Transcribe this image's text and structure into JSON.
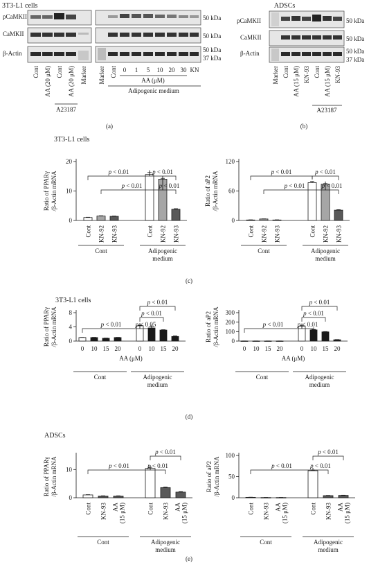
{
  "panel_a": {
    "cell_title": "3T3-L1 cells",
    "rows": [
      "pCaMKII",
      "CaMKII",
      "β-Actin"
    ],
    "left_lanes": [
      "Cont",
      "AA (20 μM)",
      "Cont",
      "AA (20 μM)",
      "Marker"
    ],
    "left_group": "A23187",
    "right_lanes": [
      "Marker",
      "Cont",
      "0",
      "1",
      "5",
      "10",
      "20",
      "30",
      "KN"
    ],
    "aa_label": "AA (μM)",
    "medium_label": "Adipogenic medium",
    "kda": [
      "50 kDa",
      "50 kDa",
      "50 kDa",
      "37 kDa"
    ],
    "caption": "(a)"
  },
  "panel_b": {
    "cell_title": "ADSCs",
    "rows": [
      "pCaMKII",
      "CaMKII",
      "β-Actin"
    ],
    "lanes": [
      "Marker",
      "Cont",
      "AA (15 μM)",
      "KN-93",
      "Cont",
      "AA (15 μM)",
      "KN-93"
    ],
    "group": "A23187",
    "kda": [
      "50 kDa",
      "50 kDa",
      "50 kDa",
      "37 kDa"
    ],
    "caption": "(b)"
  },
  "panel_c": {
    "cell_title": "3T3-L1 cells",
    "caption": "(c)"
  },
  "panel_d": {
    "cell_title": "3T3-L1 cells",
    "caption": "(d)"
  },
  "panel_e": {
    "cell_title": "ADSCs",
    "caption": "(e)"
  },
  "colors": {
    "open": "#ffffff",
    "gray": "#a6a6a6",
    "dark": "#595959",
    "black": "#1a1a1a"
  },
  "chart_data": [
    {
      "id": "c1",
      "type": "bar",
      "ylabel": [
        "Ratio of PPARγ",
        "/β-Actin mRNA"
      ],
      "ylim": [
        0,
        20
      ],
      "yticks": [
        0,
        10,
        20
      ],
      "categories": [
        "Cont",
        "KN-92",
        "KN-93",
        "Cont",
        "KN-92",
        "KN-93"
      ],
      "values": [
        1.0,
        1.5,
        1.4,
        15.6,
        14.0,
        3.8
      ],
      "errors": [
        0.1,
        0.1,
        0.1,
        0.7,
        0.3,
        0.2
      ],
      "fills": [
        "open",
        "gray",
        "dark",
        "open",
        "gray",
        "dark"
      ],
      "groups": [
        {
          "label": [
            "Cont"
          ],
          "from": 0,
          "to": 2
        },
        {
          "label": [
            "Adipogenic",
            "medium"
          ],
          "from": 3,
          "to": 5
        }
      ],
      "brackets": [
        {
          "a": 0,
          "b": 3,
          "level": 1,
          "text": "p < 0.01"
        },
        {
          "a": 1,
          "b": 4,
          "level": 0,
          "text": "p < 0.01"
        },
        {
          "a": 3,
          "b": 5,
          "level": 1,
          "text": "p < 0.01"
        },
        {
          "a": 4,
          "b": 5,
          "level": 0,
          "text": "p < 0.01"
        }
      ]
    },
    {
      "id": "c2",
      "type": "bar",
      "ylabel": [
        "Ratio of aP2",
        "/β-Actin mRNA"
      ],
      "ylim": [
        0,
        120
      ],
      "yticks": [
        0,
        60,
        120
      ],
      "categories": [
        "Cont",
        "KN-92",
        "KN-93",
        "Cont",
        "KN-92",
        "KN-93"
      ],
      "values": [
        1.0,
        3.0,
        1.0,
        77,
        74,
        21
      ],
      "errors": [
        0.3,
        0.3,
        0.3,
        2.5,
        1.0,
        1.0
      ],
      "fills": [
        "open",
        "gray",
        "dark",
        "open",
        "gray",
        "dark"
      ],
      "groups": [
        {
          "label": [
            "Cont"
          ],
          "from": 0,
          "to": 2
        },
        {
          "label": [
            "Adipogenic",
            "medium"
          ],
          "from": 3,
          "to": 5
        }
      ],
      "brackets": [
        {
          "a": 0,
          "b": 3,
          "level": 1,
          "text": "p < 0.01"
        },
        {
          "a": 1,
          "b": 4,
          "level": 0,
          "text": "p < 0.01"
        },
        {
          "a": 3,
          "b": 5,
          "level": 1,
          "text": "p < 0.01"
        },
        {
          "a": 4,
          "b": 5,
          "level": 0,
          "text": "p < 0.01"
        }
      ]
    },
    {
      "id": "d1",
      "type": "bar",
      "ylabel": [
        "Ratio of PPARγ",
        "/β-Actin mRNA"
      ],
      "ylim": [
        0,
        8
      ],
      "yticks": [
        0,
        4,
        8
      ],
      "categories": [
        "0",
        "10",
        "15",
        "20",
        "0",
        "10",
        "15",
        "20"
      ],
      "xlabel": "AA (μM)",
      "values": [
        1.0,
        1.0,
        0.8,
        1.0,
        4.3,
        3.7,
        3.1,
        1.3
      ],
      "errors": [
        0.05,
        0.05,
        0.05,
        0.05,
        0.15,
        0.35,
        0.1,
        0.15
      ],
      "fills": [
        "open",
        "black",
        "black",
        "black",
        "open",
        "black",
        "black",
        "black"
      ],
      "groups": [
        {
          "label": [
            "Cont"
          ],
          "from": 0,
          "to": 3
        },
        {
          "label": [
            "Adipogenic",
            "medium"
          ],
          "from": 4,
          "to": 7
        }
      ],
      "brackets": [
        {
          "a": 0,
          "b": 4,
          "level": 0,
          "text": "p < 0.01"
        },
        {
          "a": 4,
          "b": 5,
          "level": 0,
          "text": "p < 0.05"
        },
        {
          "a": 4,
          "b": 6,
          "level": 1,
          "text": "p < 0.01"
        },
        {
          "a": 4,
          "b": 7,
          "level": 2,
          "text": "p < 0.01"
        }
      ]
    },
    {
      "id": "d2",
      "type": "bar",
      "ylabel": [
        "Ratio of aP2",
        "/β-Actin mRNA"
      ],
      "ylim": [
        0,
        300
      ],
      "yticks": [
        0,
        100,
        200,
        300
      ],
      "categories": [
        "0",
        "10",
        "15",
        "20",
        "0",
        "10",
        "15",
        "20"
      ],
      "xlabel": "AA (μM)",
      "values": [
        1.0,
        1.0,
        1.0,
        1.0,
        157,
        118,
        97,
        14
      ],
      "errors": [
        0.5,
        0.5,
        0.5,
        0.5,
        6,
        5,
        3,
        2
      ],
      "fills": [
        "open",
        "black",
        "black",
        "black",
        "open",
        "black",
        "black",
        "black"
      ],
      "groups": [
        {
          "label": [
            "Cont"
          ],
          "from": 0,
          "to": 3
        },
        {
          "label": [
            "Adipogenic",
            "medium"
          ],
          "from": 4,
          "to": 7
        }
      ],
      "brackets": [
        {
          "a": 0,
          "b": 4,
          "level": 0,
          "text": "p < 0.01"
        },
        {
          "a": 4,
          "b": 5,
          "level": 0,
          "text": "p < 0.01"
        },
        {
          "a": 4,
          "b": 6,
          "level": 1,
          "text": "p < 0.01"
        },
        {
          "a": 4,
          "b": 7,
          "level": 2,
          "text": "p < 0.01"
        }
      ]
    },
    {
      "id": "e1",
      "type": "bar",
      "ylabel": [
        "Ratio of PPARγ",
        "/β-Actin mRNA"
      ],
      "ylim": [
        0,
        15
      ],
      "yticks": [
        0,
        10
      ],
      "categories": [
        [
          "Cont"
        ],
        [
          "KN-93"
        ],
        [
          "AA",
          "(15 μM)"
        ],
        [
          "Cont"
        ],
        [
          "KN-93"
        ],
        [
          "AA",
          "(15 μM)"
        ]
      ],
      "values": [
        1.0,
        0.6,
        0.6,
        10.4,
        3.6,
        2.0
      ],
      "errors": [
        0.1,
        0.1,
        0.1,
        0.4,
        0.2,
        0.2
      ],
      "fills": [
        "open",
        "dark",
        "dark",
        "open",
        "dark",
        "dark"
      ],
      "groups": [
        {
          "label": [
            "Cont"
          ],
          "from": 0,
          "to": 2
        },
        {
          "label": [
            "Adipogenic",
            "medium"
          ],
          "from": 3,
          "to": 5
        }
      ],
      "brackets": [
        {
          "a": 0,
          "b": 3,
          "level": 0,
          "text": "p < 0.01"
        },
        {
          "a": 3,
          "b": 4,
          "level": 0,
          "text": "p < 0.01"
        },
        {
          "a": 3,
          "b": 5,
          "level": 1,
          "text": "p < 0.01"
        }
      ]
    },
    {
      "id": "e2",
      "type": "bar",
      "ylabel": [
        "Ratio of aP2",
        "/β-Actin mRNA"
      ],
      "ylim": [
        0,
        100
      ],
      "yticks": [
        0,
        50,
        100
      ],
      "categories": [
        [
          "Cont"
        ],
        [
          "KN-93"
        ],
        [
          "AA",
          "(15 μM)"
        ],
        [
          "Cont"
        ],
        [
          "KN-93"
        ],
        [
          "AA",
          "(15 μM)"
        ]
      ],
      "values": [
        1.0,
        0.5,
        0.5,
        64,
        5,
        5.5
      ],
      "errors": [
        0.3,
        0.2,
        0.2,
        1.5,
        0.5,
        0.5
      ],
      "fills": [
        "open",
        "dark",
        "dark",
        "open",
        "dark",
        "dark"
      ],
      "groups": [
        {
          "label": [
            "Cont"
          ],
          "from": 0,
          "to": 2
        },
        {
          "label": [
            "Adipogenic",
            "medium"
          ],
          "from": 3,
          "to": 5
        }
      ],
      "brackets": [
        {
          "a": 0,
          "b": 3,
          "level": 0,
          "text": "p < 0.01"
        },
        {
          "a": 3,
          "b": 4,
          "level": 0,
          "text": "p < 0.01"
        },
        {
          "a": 3,
          "b": 5,
          "level": 1,
          "text": "p < 0.01"
        }
      ]
    }
  ]
}
